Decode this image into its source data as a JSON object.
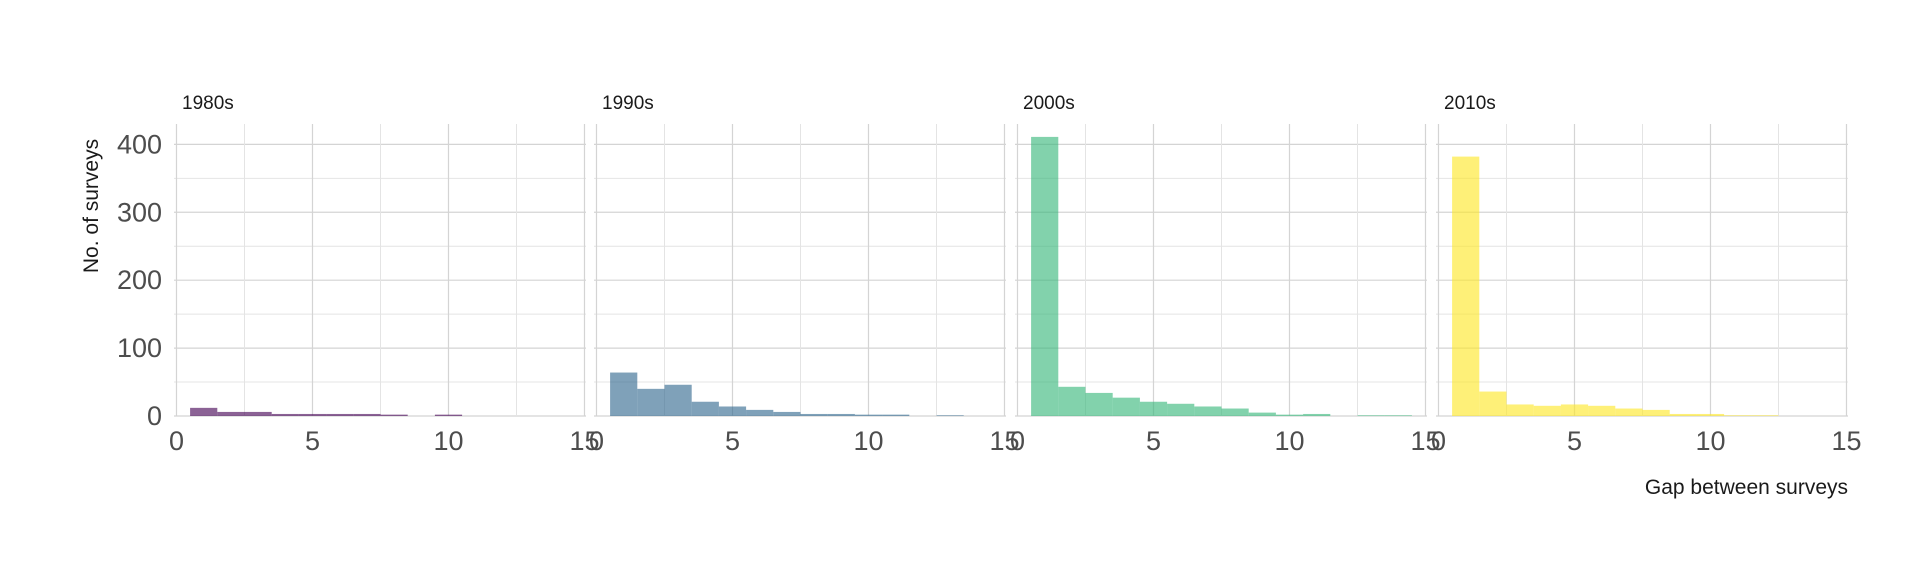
{
  "chart_data": {
    "type": "bar",
    "xlabel": "Gap between surveys",
    "ylabel": "No. of surveys",
    "xlim": [
      0,
      15
    ],
    "ylim": [
      0,
      430
    ],
    "x_ticks": [
      0,
      5,
      10,
      15
    ],
    "y_ticks": [
      0,
      100,
      200,
      300,
      400
    ],
    "grid": true,
    "bin_width": 1,
    "panels": [
      {
        "label": "1980s",
        "color": "#440154",
        "bins": [
          {
            "x": 1,
            "y": 12
          },
          {
            "x": 2,
            "y": 6
          },
          {
            "x": 3,
            "y": 6
          },
          {
            "x": 4,
            "y": 3
          },
          {
            "x": 5,
            "y": 3
          },
          {
            "x": 6,
            "y": 3
          },
          {
            "x": 7,
            "y": 3
          },
          {
            "x": 8,
            "y": 2
          },
          {
            "x": 10,
            "y": 2
          }
        ]
      },
      {
        "label": "1990s",
        "color": "#31688e",
        "bins": [
          {
            "x": 1,
            "y": 64
          },
          {
            "x": 2,
            "y": 40
          },
          {
            "x": 3,
            "y": 46
          },
          {
            "x": 4,
            "y": 21
          },
          {
            "x": 5,
            "y": 14
          },
          {
            "x": 6,
            "y": 9
          },
          {
            "x": 7,
            "y": 6
          },
          {
            "x": 8,
            "y": 3
          },
          {
            "x": 9,
            "y": 3
          },
          {
            "x": 10,
            "y": 2
          },
          {
            "x": 11,
            "y": 2
          },
          {
            "x": 13,
            "y": 1
          }
        ]
      },
      {
        "label": "2000s",
        "color": "#35b779",
        "bins": [
          {
            "x": 1,
            "y": 411
          },
          {
            "x": 2,
            "y": 43
          },
          {
            "x": 3,
            "y": 34
          },
          {
            "x": 4,
            "y": 27
          },
          {
            "x": 5,
            "y": 21
          },
          {
            "x": 6,
            "y": 18
          },
          {
            "x": 7,
            "y": 14
          },
          {
            "x": 8,
            "y": 11
          },
          {
            "x": 9,
            "y": 5
          },
          {
            "x": 10,
            "y": 2
          },
          {
            "x": 11,
            "y": 3
          },
          {
            "x": 13,
            "y": 1
          },
          {
            "x": 14,
            "y": 1
          }
        ]
      },
      {
        "label": "2010s",
        "color": "#fde725",
        "bins": [
          {
            "x": 1,
            "y": 382
          },
          {
            "x": 2,
            "y": 36
          },
          {
            "x": 3,
            "y": 17
          },
          {
            "x": 4,
            "y": 15
          },
          {
            "x": 5,
            "y": 17
          },
          {
            "x": 6,
            "y": 15
          },
          {
            "x": 7,
            "y": 11
          },
          {
            "x": 8,
            "y": 9
          },
          {
            "x": 9,
            "y": 3
          },
          {
            "x": 10,
            "y": 3
          },
          {
            "x": 11,
            "y": 1
          },
          {
            "x": 12,
            "y": 1
          }
        ]
      }
    ]
  }
}
